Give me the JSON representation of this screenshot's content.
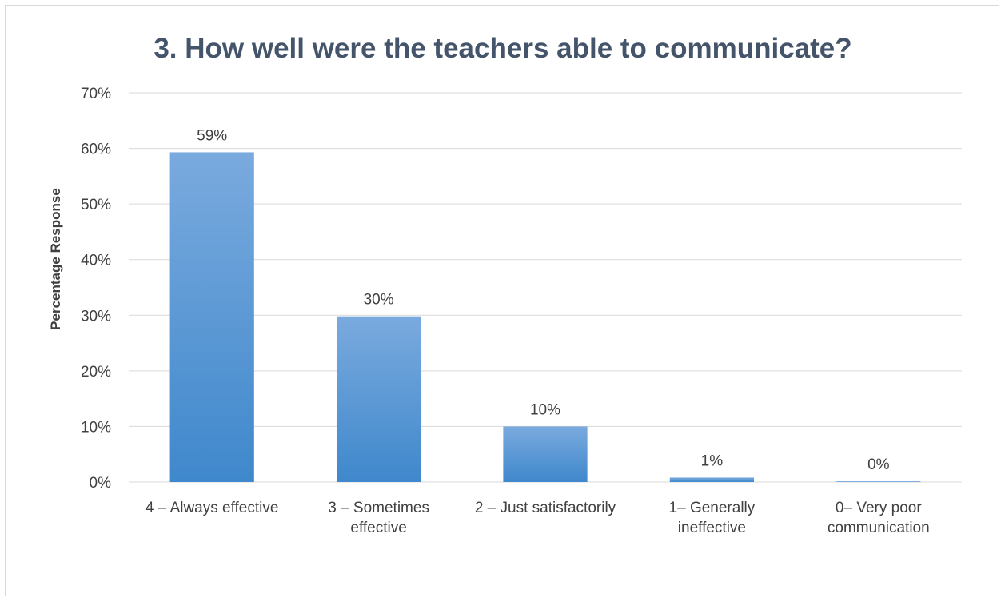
{
  "chart_data": {
    "type": "bar",
    "title": "3. How well were the teachers able to communicate?",
    "ylabel": "Percentage Response",
    "xlabel": "",
    "categories": [
      [
        "4 – Always effective"
      ],
      [
        "3 – Sometimes",
        "effective"
      ],
      [
        "2 – Just satisfactorily"
      ],
      [
        "1– Generally",
        "ineffective"
      ],
      [
        "0– Very poor",
        "communication"
      ]
    ],
    "values": [
      59.3,
      29.8,
      10,
      0.8,
      0.1
    ],
    "data_labels": [
      "59%",
      "30%",
      "10%",
      "1%",
      "0%"
    ],
    "ylim": [
      0,
      70
    ],
    "yticks": [
      0,
      10,
      20,
      30,
      40,
      50,
      60,
      70
    ],
    "ytick_labels": [
      "0%",
      "10%",
      "20%",
      "30%",
      "40%",
      "50%",
      "60%",
      "70%"
    ],
    "grid": true,
    "colors": {
      "bar_top": "#7aaade",
      "bar_bottom": "#3f88cc",
      "grid": "#d9d9d9",
      "title": "#44546a"
    }
  }
}
